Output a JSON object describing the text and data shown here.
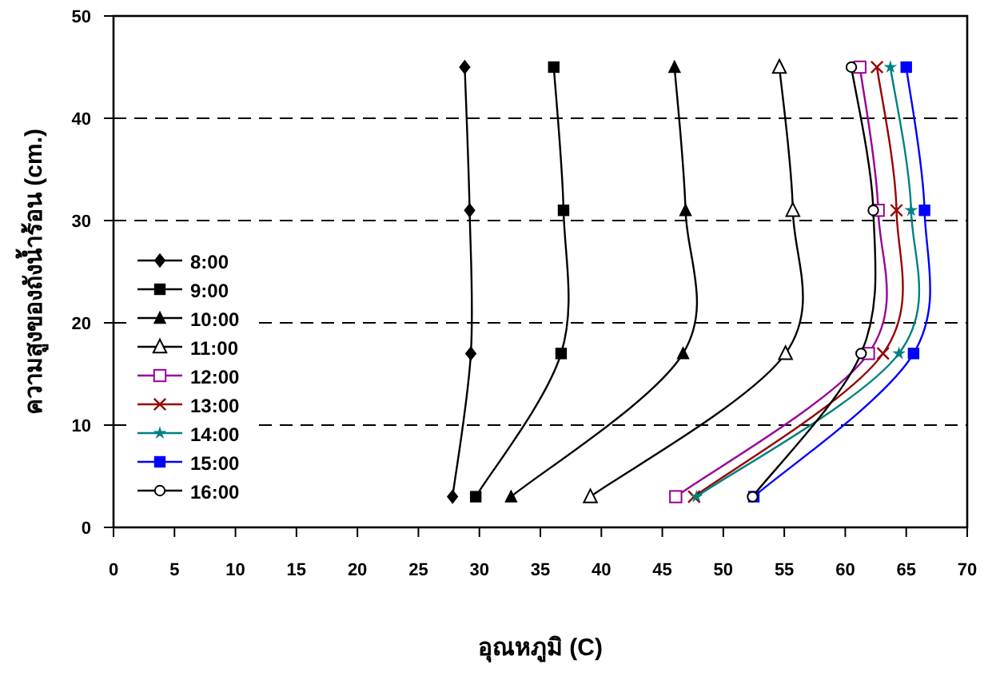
{
  "chart_data": {
    "type": "line",
    "xlabel": "อุณหภูมิ (C)",
    "ylabel": "ความสูงของถังน้ำร้อน (cm.)",
    "xlim": [
      0,
      70
    ],
    "xticks": [
      0,
      5,
      10,
      15,
      20,
      25,
      30,
      35,
      40,
      45,
      50,
      55,
      60,
      65,
      70
    ],
    "ylim": [
      0,
      50
    ],
    "yticks": [
      0,
      10,
      20,
      30,
      40,
      50
    ],
    "grid": "y",
    "legend": "left",
    "series": [
      {
        "name": "8:00",
        "color": "#000000",
        "marker": "diamond",
        "x": [
          28.8,
          29.2,
          29.3,
          27.8
        ],
        "values": [
          45,
          31,
          17,
          3
        ]
      },
      {
        "name": "9:00",
        "color": "#000000",
        "marker": "square",
        "x": [
          36.1,
          36.9,
          36.7,
          29.7
        ],
        "values": [
          45,
          31,
          17,
          3
        ]
      },
      {
        "name": "10:00",
        "color": "#000000",
        "marker": "triangle",
        "x": [
          46.0,
          46.9,
          46.7,
          32.6
        ],
        "values": [
          45,
          31,
          17,
          3
        ]
      },
      {
        "name": "11:00",
        "color": "#000000",
        "marker": "triangle-open",
        "x": [
          54.6,
          55.7,
          55.1,
          39.1
        ],
        "values": [
          45,
          31,
          17,
          3
        ]
      },
      {
        "name": "12:00",
        "color": "#990099",
        "marker": "square-open",
        "x": [
          61.2,
          62.7,
          61.9,
          46.1
        ],
        "values": [
          45,
          31,
          17,
          3
        ]
      },
      {
        "name": "13:00",
        "color": "#990000",
        "marker": "cross",
        "x": [
          62.6,
          64.2,
          63.1,
          47.6
        ],
        "values": [
          45,
          31,
          17,
          3
        ]
      },
      {
        "name": "14:00",
        "color": "#008080",
        "marker": "star",
        "x": [
          63.7,
          65.4,
          64.4,
          47.8
        ],
        "values": [
          45,
          31,
          17,
          3
        ]
      },
      {
        "name": "15:00",
        "color": "#0000ff",
        "marker": "square",
        "x": [
          65.0,
          66.5,
          65.6,
          52.5
        ],
        "values": [
          45,
          31,
          17,
          3
        ]
      },
      {
        "name": "16:00",
        "color": "#000000",
        "marker": "circle-open",
        "x": [
          60.5,
          62.3,
          61.3,
          52.4
        ],
        "values": [
          45,
          31,
          17,
          3
        ]
      }
    ]
  }
}
